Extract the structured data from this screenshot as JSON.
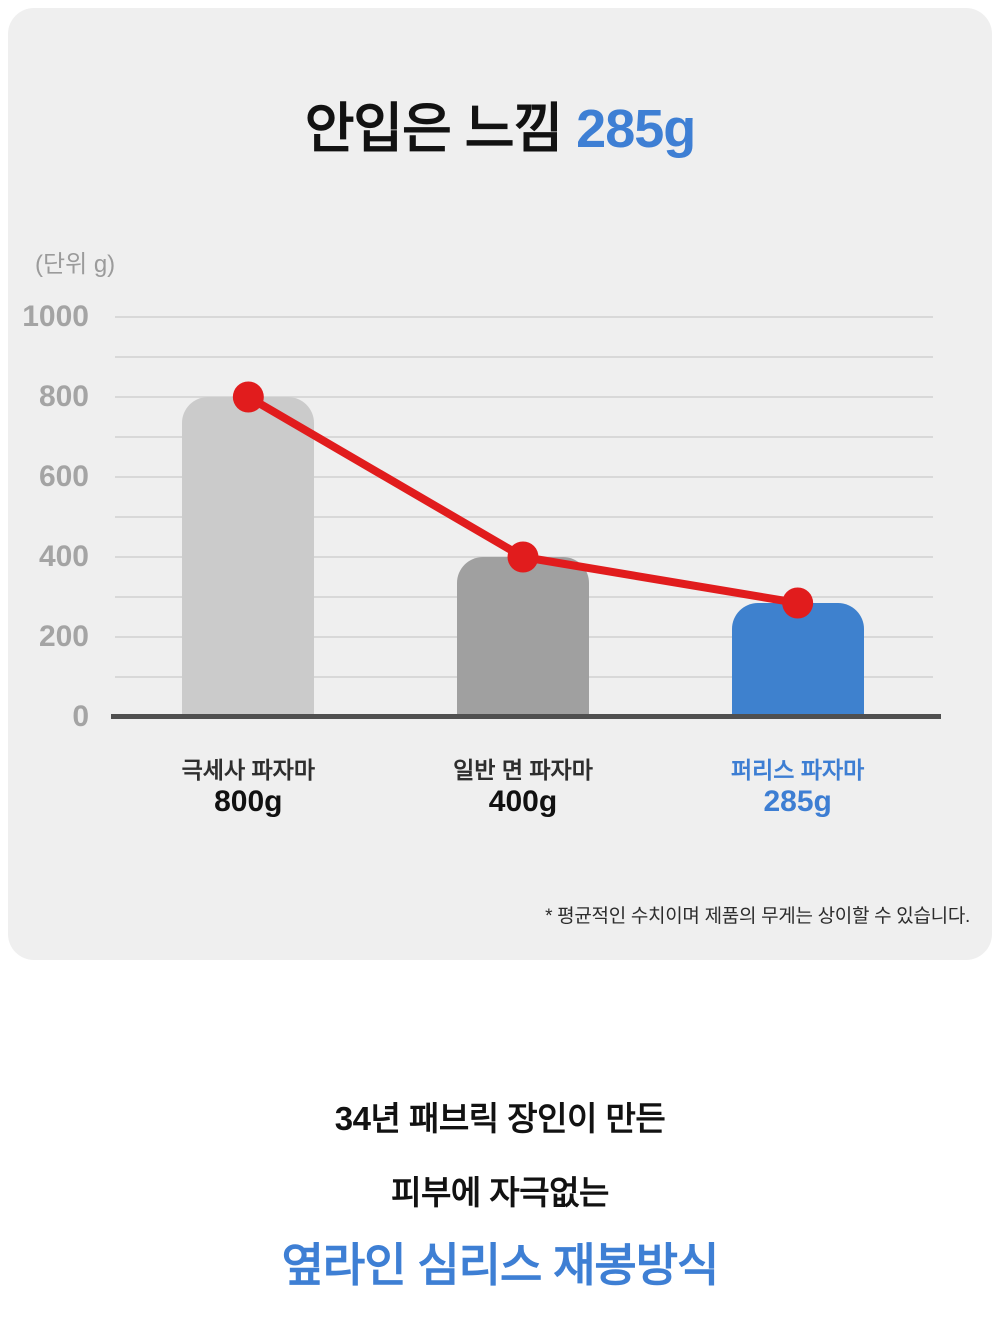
{
  "title": {
    "text_black": "안입은 느낌",
    "text_blue": "285g"
  },
  "chart_data": {
    "type": "bar",
    "overlay": "line",
    "unit_label": "(단위 g)",
    "categories": [
      "극세사 파자마",
      "일반 면 파자마",
      "퍼리스 파자마"
    ],
    "values": [
      800,
      400,
      285
    ],
    "value_labels": [
      "800g",
      "400g",
      "285g"
    ],
    "bar_colors": [
      "#cbcbcb",
      "#a0a0a0",
      "#3e81ce"
    ],
    "category_label_colors": [
      "#2e2e2e",
      "#2e2e2e",
      "#3d7ed3"
    ],
    "value_label_colors": [
      "#111111",
      "#111111",
      "#3d7ed3"
    ],
    "line_color": "#e11c1d",
    "ylim": [
      0,
      1000
    ],
    "ytick_line_step": 100,
    "ytick_label_step": 200,
    "grid": true,
    "legend": "none",
    "xlabel": "",
    "ylabel": "(단위 g)"
  },
  "footnote": "* 평균적인 수치이며 제품의 무게는 상이할 수 있습니다.",
  "bottom": {
    "line1": "34년 패브릭 장인이 만든",
    "line2": "피부에 자극없는",
    "line3": "옆라인 심리스 재봉방식"
  },
  "colors": {
    "page_bg": "#ffffff",
    "card_bg": "#efefef",
    "accent_blue": "#3e7fd4",
    "bar_blue": "#3e81ce",
    "bar_gray_light": "#cbcbcb",
    "bar_gray_mid": "#a0a0a0",
    "red": "#e11c1d",
    "grid_line": "#d8d8d8",
    "axis_line": "#4f4f4f",
    "axis_text": "#a4a4a4"
  }
}
